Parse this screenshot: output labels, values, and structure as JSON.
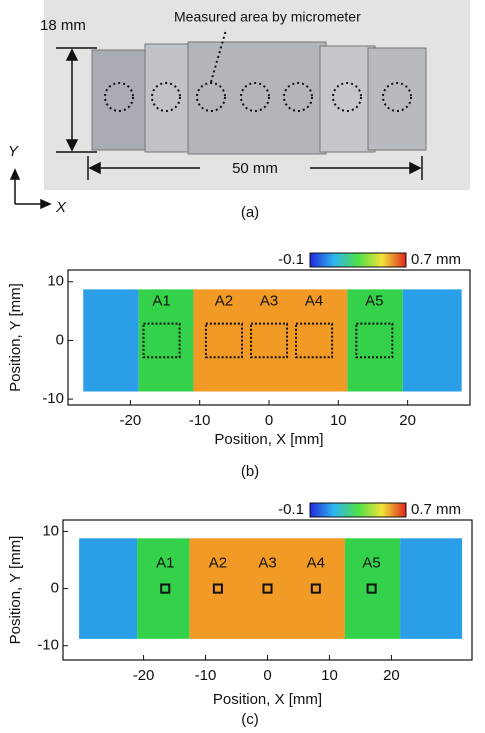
{
  "panel_a": {
    "height_label": "18 mm",
    "area_label": "Measured area by micrometer",
    "width_label": "50 mm",
    "y_axis": "Y",
    "x_axis": "X",
    "caption": "(a)"
  },
  "panel_b": {
    "colorbar": {
      "min_label": "-0.1",
      "max_label": "0.7 mm"
    },
    "labels": [
      "A1",
      "A2",
      "A3",
      "A4",
      "A5"
    ],
    "xlabel": "Position, X [mm]",
    "ylabel": "Position, Y [mm]",
    "xlim": [
      -29,
      29
    ],
    "ylim": [
      -11,
      12
    ],
    "xticks": [
      -20,
      -10,
      0,
      10,
      20
    ],
    "yticks": [
      -10,
      0,
      10
    ],
    "caption": "(b)"
  },
  "panel_c": {
    "colorbar": {
      "min_label": "-0.1",
      "max_label": "0.7 mm"
    },
    "labels": [
      "A1",
      "A2",
      "A3",
      "A4",
      "A5"
    ],
    "xlabel": "Position, X [mm]",
    "ylabel": "Position, Y [mm]",
    "xlim": [
      -33,
      33
    ],
    "ylim": [
      -12.5,
      12
    ],
    "xticks": [
      -20,
      -10,
      0,
      10,
      20
    ],
    "yticks": [
      -10,
      0,
      10
    ],
    "caption": "(c)"
  }
}
